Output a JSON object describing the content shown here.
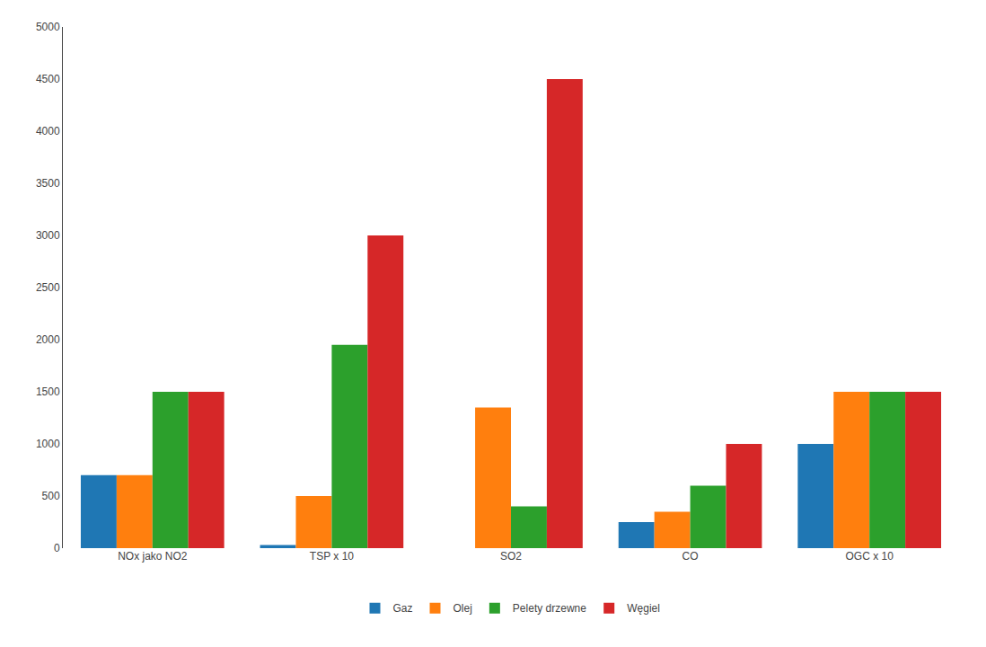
{
  "chart_data": {
    "type": "bar",
    "categories": [
      "NOx jako NO2",
      "TSP x 10",
      "SO2",
      "CO",
      "OGC x 10"
    ],
    "series": [
      {
        "name": "Gaz",
        "values": [
          700,
          30,
          0,
          250,
          1000
        ]
      },
      {
        "name": "Olej",
        "values": [
          700,
          500,
          1350,
          350,
          1500
        ]
      },
      {
        "name": "Pelety drzewne",
        "values": [
          1500,
          1950,
          400,
          600,
          1500
        ]
      },
      {
        "name": "Węgiel",
        "values": [
          1500,
          3000,
          4500,
          1000,
          1500
        ]
      }
    ],
    "ylim": [
      0,
      5000
    ],
    "yticks": [
      0,
      500,
      1000,
      1500,
      2000,
      2500,
      3000,
      3500,
      4000,
      4500,
      5000
    ],
    "grid": false,
    "legend": "bottom"
  }
}
